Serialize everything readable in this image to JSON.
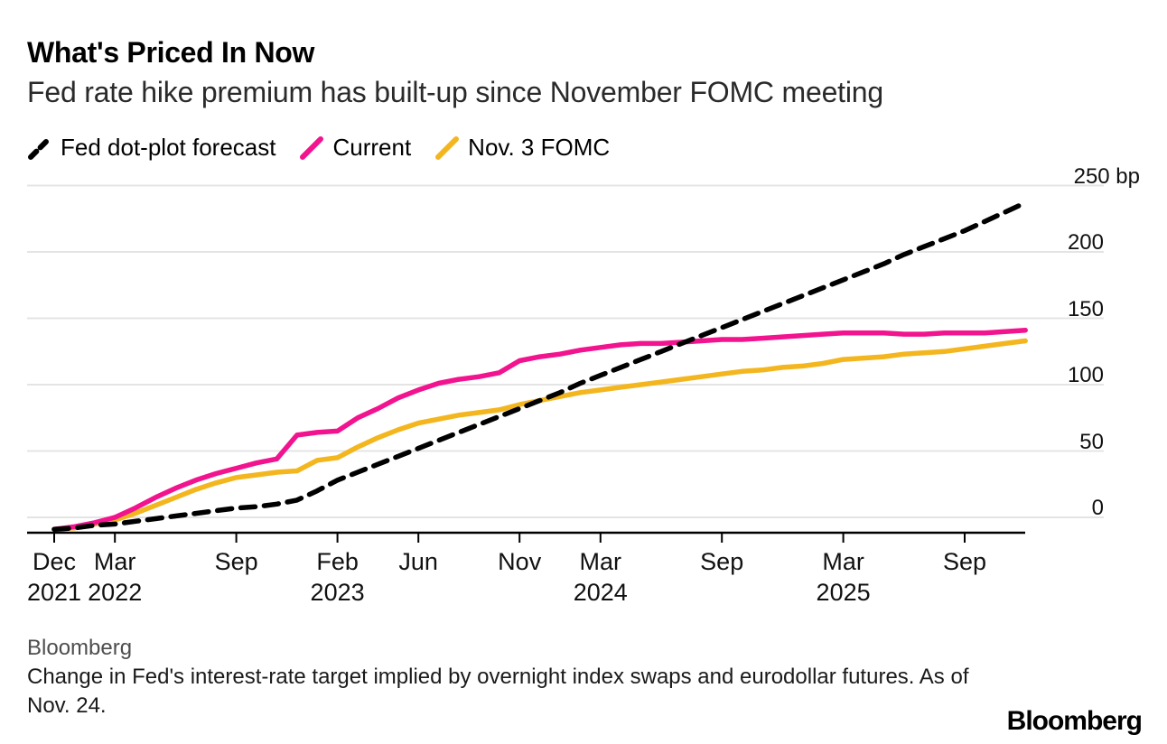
{
  "header": {
    "title": "What's Priced In Now",
    "subtitle": "Fed rate hike premium has built-up since November FOMC meeting"
  },
  "legend": [
    {
      "label": "Fed dot-plot forecast",
      "color": "#000000",
      "dash": true
    },
    {
      "label": "Current",
      "color": "#f2138f",
      "dash": false
    },
    {
      "label": "Nov. 3 FOMC",
      "color": "#f3b61e",
      "dash": false
    }
  ],
  "chart_data": {
    "type": "line",
    "title": "What's Priced In Now",
    "subtitle": "Fed rate hike premium has built-up since November FOMC meeting",
    "ylabel": "bp",
    "ylim": [
      -18,
      255
    ],
    "grid": true,
    "legend_position": "top",
    "x_axis_description": "Monthly points from Dec 2021 (month 0) to Dec 2025 (month 48)",
    "x_ticks": [
      {
        "month": 0,
        "line1": "Dec",
        "line2": "2021"
      },
      {
        "month": 3,
        "line1": "Mar",
        "line2": "2022"
      },
      {
        "month": 9,
        "line1": "Sep",
        "line2": ""
      },
      {
        "month": 14,
        "line1": "Feb",
        "line2": "2023"
      },
      {
        "month": 18,
        "line1": "Jun",
        "line2": ""
      },
      {
        "month": 23,
        "line1": "Nov",
        "line2": ""
      },
      {
        "month": 27,
        "line1": "Mar",
        "line2": "2024"
      },
      {
        "month": 33,
        "line1": "Sep",
        "line2": ""
      },
      {
        "month": 39,
        "line1": "Mar",
        "line2": "2025"
      },
      {
        "month": 45,
        "line1": "Sep",
        "line2": ""
      }
    ],
    "y_ticks": [
      {
        "value": 0,
        "label": "0"
      },
      {
        "value": 50,
        "label": "50"
      },
      {
        "value": 100,
        "label": "100"
      },
      {
        "value": 150,
        "label": "150"
      },
      {
        "value": 200,
        "label": "200"
      },
      {
        "value": 250,
        "label": "250 bp"
      }
    ],
    "series": [
      {
        "name": "Fed dot-plot forecast",
        "color": "#000000",
        "dash": true,
        "values": [
          -9,
          -8,
          -6,
          -5,
          -3,
          -1,
          1,
          3,
          5,
          7,
          8,
          10,
          13,
          20,
          28,
          34,
          40,
          46,
          52,
          58,
          64,
          70,
          76,
          82,
          88,
          94,
          101,
          107,
          113,
          119,
          125,
          131,
          137,
          143,
          149,
          155,
          161,
          167,
          173,
          179,
          185,
          191,
          198,
          204,
          210,
          216,
          223,
          230,
          237
        ]
      },
      {
        "name": "Current",
        "color": "#f2138f",
        "dash": false,
        "values": [
          -9,
          -7,
          -4,
          0,
          7,
          15,
          22,
          28,
          33,
          37,
          41,
          44,
          62,
          64,
          65,
          75,
          82,
          90,
          96,
          101,
          104,
          106,
          109,
          118,
          121,
          123,
          126,
          128,
          130,
          131,
          131,
          132,
          133,
          134,
          134,
          135,
          136,
          137,
          138,
          139,
          139,
          139,
          138,
          138,
          139,
          139,
          139,
          140,
          141
        ]
      },
      {
        "name": "Nov. 3 FOMC",
        "color": "#f3b61e",
        "dash": false,
        "values": [
          -9,
          -8,
          -5,
          -2,
          3,
          9,
          15,
          21,
          26,
          30,
          32,
          34,
          35,
          43,
          45,
          53,
          60,
          66,
          71,
          74,
          77,
          79,
          81,
          85,
          88,
          91,
          94,
          96,
          98,
          100,
          102,
          104,
          106,
          108,
          110,
          111,
          113,
          114,
          116,
          119,
          120,
          121,
          123,
          124,
          125,
          127,
          129,
          131,
          133
        ]
      }
    ]
  },
  "footer": {
    "source": "Bloomberg",
    "note": "Change in Fed's interest-rate target implied by overnight index swaps and eurodollar futures. As of Nov. 24.",
    "logo": "Bloomberg"
  }
}
